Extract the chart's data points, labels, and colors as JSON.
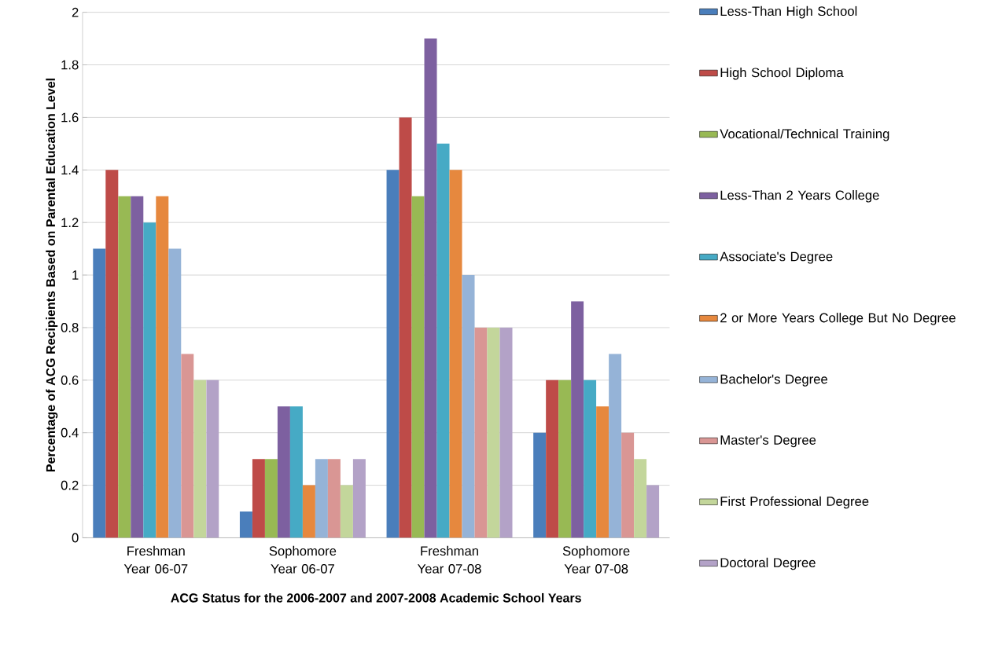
{
  "chart_data": {
    "type": "bar",
    "xlabel": "ACG Status for the 2006-2007 and 2007-2008 Academic School Years",
    "ylabel": "Percentage of ACG Recipients Based on Parental Education Level",
    "categories": [
      "Freshman Year 06-07",
      "Sophomore Year 06-07",
      "Freshman Year 07-08",
      "Sophomore Year 07-08"
    ],
    "series": [
      {
        "name": "Less-Than High School",
        "color": "#4a7ebb",
        "values": [
          1.1,
          0.1,
          1.4,
          0.4
        ]
      },
      {
        "name": "High School Diploma",
        "color": "#be4b48",
        "values": [
          1.4,
          0.3,
          1.6,
          0.6
        ]
      },
      {
        "name": "Vocational/Technical Training",
        "color": "#98b954",
        "values": [
          1.3,
          0.3,
          1.3,
          0.6
        ]
      },
      {
        "name": "Less-Than 2 Years College",
        "color": "#7d60a0",
        "values": [
          1.3,
          0.5,
          1.9,
          0.9
        ]
      },
      {
        "name": "Associate's Degree",
        "color": "#46aac5",
        "values": [
          1.2,
          0.5,
          1.5,
          0.6
        ]
      },
      {
        "name": "2 or More Years College But No Degree",
        "color": "#e6883e",
        "values": [
          1.3,
          0.2,
          1.4,
          0.5
        ]
      },
      {
        "name": "Bachelor's Degree",
        "color": "#95b3d7",
        "values": [
          1.1,
          0.3,
          1.0,
          0.7
        ]
      },
      {
        "name": "Master's Degree",
        "color": "#d99694",
        "values": [
          0.7,
          0.3,
          0.8,
          0.4
        ]
      },
      {
        "name": "First Professional Degree",
        "color": "#c3d69b",
        "values": [
          0.6,
          0.2,
          0.8,
          0.3
        ]
      },
      {
        "name": "Doctoral Degree",
        "color": "#b3a2c7",
        "values": [
          0.6,
          0.3,
          0.8,
          0.2
        ]
      }
    ],
    "ylim": [
      0,
      2
    ],
    "yticks": [
      0,
      0.2,
      0.4,
      0.6,
      0.8,
      1,
      1.2,
      1.4,
      1.6,
      1.8,
      2
    ],
    "grid": "y",
    "legend": "right"
  }
}
